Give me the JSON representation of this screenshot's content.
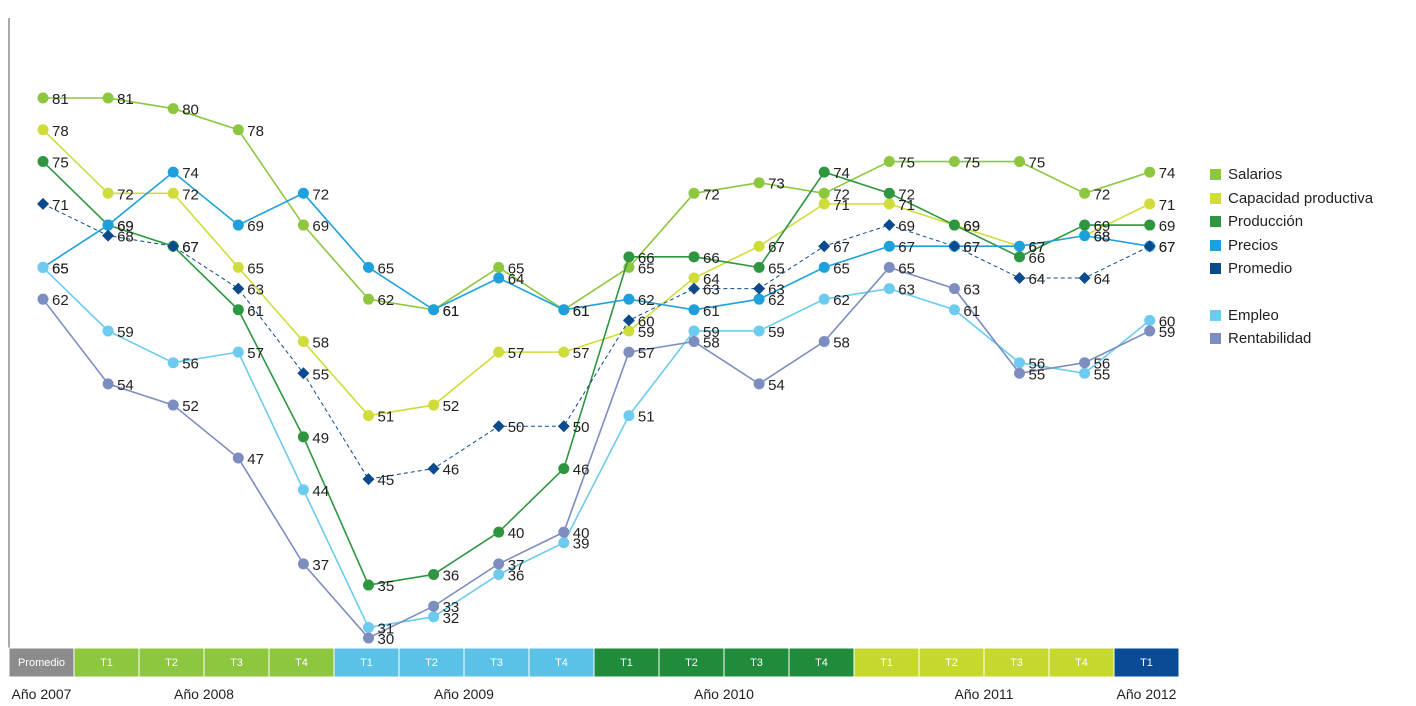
{
  "chart_data": {
    "type": "line",
    "categories": [
      "Promedio",
      "T1",
      "T2",
      "T3",
      "T4",
      "T1",
      "T2",
      "T3",
      "T4",
      "T1",
      "T2",
      "T3",
      "T4",
      "T1",
      "T2",
      "T3",
      "T4",
      "T1"
    ],
    "category_colors": [
      "#8c8c8c",
      "#8dc63f",
      "#8dc63f",
      "#8dc63f",
      "#8dc63f",
      "#5bc2e7",
      "#5bc2e7",
      "#5bc2e7",
      "#5bc2e7",
      "#1f8b3b",
      "#1f8b3b",
      "#1f8b3b",
      "#1f8b3b",
      "#c4d82e",
      "#c4d82e",
      "#c4d82e",
      "#c4d82e",
      "#0a4b96"
    ],
    "year_labels": [
      {
        "text": "Año 2007",
        "index": 0
      },
      {
        "text": "Año 2008",
        "index": 2.5
      },
      {
        "text": "Año 2009",
        "index": 6.5
      },
      {
        "text": "Año 2010",
        "index": 10.5
      },
      {
        "text": "Año 2011",
        "index": 14.5
      },
      {
        "text": "Año 2012",
        "index": 17
      }
    ],
    "ylim": [
      30,
      81
    ],
    "grid": false,
    "legend_position": "right",
    "series": [
      {
        "name": "Salarios",
        "color": "#8dc63f",
        "marker": "circle",
        "dashed": false,
        "values": [
          81,
          81,
          80,
          78,
          69,
          62,
          61,
          65,
          61,
          65,
          72,
          73,
          72,
          75,
          75,
          75,
          72,
          74
        ]
      },
      {
        "name": "Capacidad productiva",
        "color": "#cfdc3a",
        "marker": "circle",
        "dashed": false,
        "values": [
          78,
          72,
          72,
          65,
          58,
          51,
          52,
          57,
          57,
          59,
          64,
          67,
          71,
          71,
          69,
          67,
          68,
          71
        ]
      },
      {
        "name": "Producción",
        "color": "#2e9640",
        "marker": "circle",
        "dashed": false,
        "values": [
          75,
          69,
          67,
          61,
          49,
          35,
          36,
          40,
          46,
          66,
          66,
          65,
          74,
          72,
          69,
          66,
          69,
          69
        ]
      },
      {
        "name": "Precios",
        "color": "#1ea0dc",
        "marker": "circle",
        "dashed": false,
        "values": [
          65,
          69,
          74,
          69,
          72,
          65,
          61,
          64,
          61,
          62,
          61,
          62,
          65,
          67,
          67,
          67,
          68,
          67
        ]
      },
      {
        "name": "Promedio",
        "color": "#0c4a8e",
        "marker": "diamond",
        "dashed": true,
        "values": [
          71,
          68,
          67,
          63,
          55,
          45,
          46,
          50,
          50,
          60,
          63,
          63,
          67,
          69,
          67,
          64,
          64,
          67
        ]
      },
      {
        "name": "Empleo",
        "color": "#6ccbee",
        "marker": "circle",
        "dashed": false,
        "values": [
          65,
          59,
          56,
          57,
          44,
          31,
          32,
          36,
          39,
          51,
          59,
          59,
          62,
          63,
          61,
          56,
          55,
          60
        ]
      },
      {
        "name": "Rentabilidad",
        "color": "#7d8dc0",
        "marker": "circle",
        "dashed": false,
        "values": [
          62,
          54,
          52,
          47,
          37,
          30,
          33,
          37,
          40,
          57,
          58,
          54,
          58,
          65,
          63,
          55,
          56,
          59
        ]
      }
    ]
  }
}
